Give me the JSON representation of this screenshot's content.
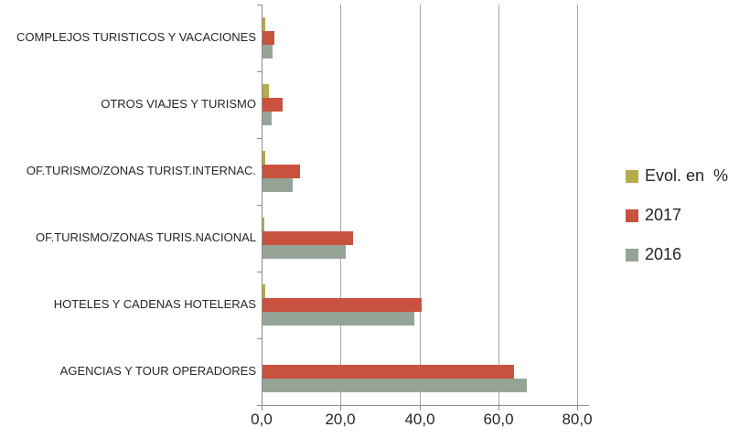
{
  "chart_data": {
    "type": "bar",
    "orientation": "horizontal",
    "title": "",
    "xlabel": "",
    "ylabel": "",
    "categories": [
      "COMPLEJOS TURISTICOS Y VACACIONES",
      "OTROS VIAJES Y TURISMO",
      "OF.TURISMO/ZONAS TURIST.INTERNAC.",
      "OF.TURISMO/ZONAS TURIS.NACIONAL",
      "HOTELES Y CADENAS HOTELERAS",
      "AGENCIAS Y TOUR OPERADORES"
    ],
    "series": [
      {
        "name": "Evol. en  %",
        "color": "#b3ac4b",
        "values": [
          0.8,
          1.7,
          0.8,
          0.5,
          0.8,
          0.0
        ]
      },
      {
        "name": "2017",
        "color": "#c8523e",
        "values": [
          3.0,
          5.0,
          9.6,
          22.9,
          40.4,
          63.7
        ]
      },
      {
        "name": "2016",
        "color": "#95a497",
        "values": [
          2.5,
          2.4,
          7.6,
          21.1,
          38.5,
          67.1
        ]
      }
    ],
    "x_ticks": [
      "0,0",
      "20,0",
      "40,0",
      "60,0",
      "80,0"
    ],
    "x_tick_values": [
      0,
      20,
      40,
      60,
      80
    ],
    "xlim": [
      0,
      82.8
    ],
    "grid": "vertical-gridlines",
    "legend_position": "right",
    "legend_entries": [
      "Evol. en  %",
      "2017",
      "2016"
    ]
  },
  "style_colors": {
    "gridline": "#a6a6a6",
    "axis": "#8c8c8c",
    "text": "#262626",
    "background": "#ffffff"
  }
}
